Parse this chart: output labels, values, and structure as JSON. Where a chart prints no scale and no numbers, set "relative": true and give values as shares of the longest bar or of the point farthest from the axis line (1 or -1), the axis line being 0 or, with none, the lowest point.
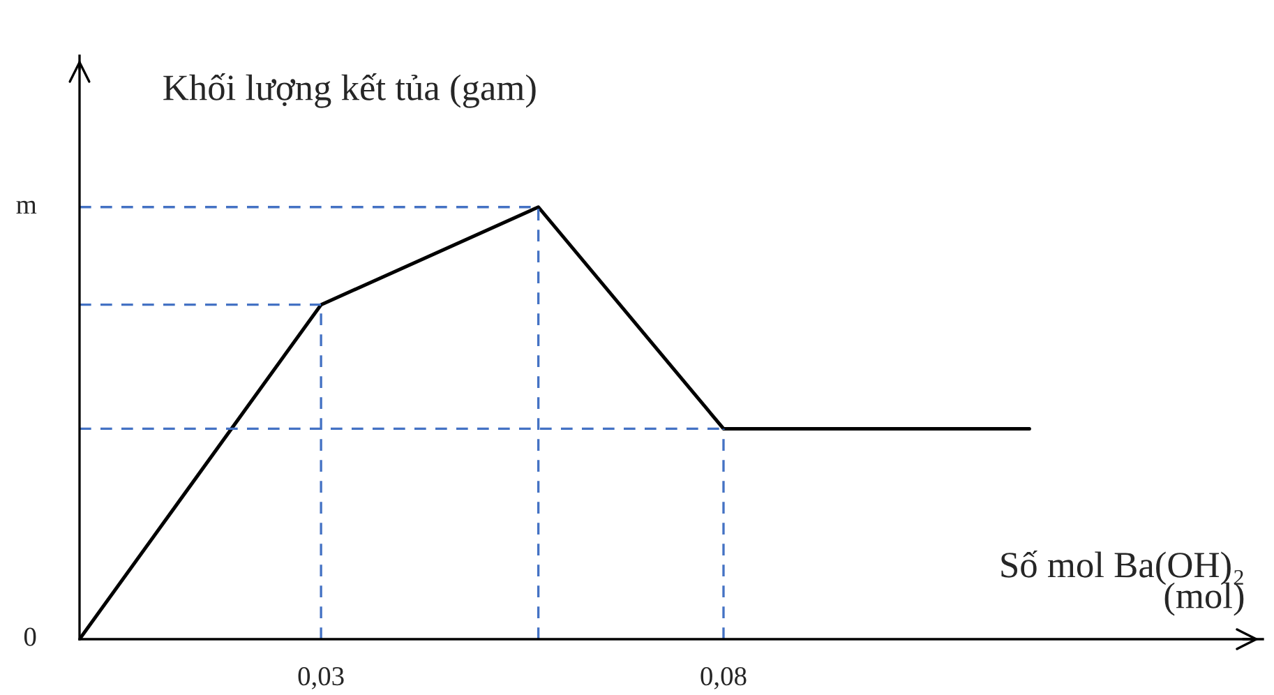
{
  "chart_data": {
    "type": "line",
    "relative": true,
    "xlabel": "Số mol Ba(OH)₂\n(mol)",
    "ylabel": "Khối lượng kết tủa (gam)",
    "xlim": [
      0,
      0.147
    ],
    "xticks": [
      {
        "value": 0.03,
        "label": "0,03"
      },
      {
        "value": 0.08,
        "label": "0,08"
      }
    ],
    "tick_labels": "x",
    "series": [
      {
        "color": "#000000",
        "x": [
          0,
          0.03,
          0.057,
          0.08,
          0.118
        ],
        "values": [
          0,
          0.774,
          1,
          0.487,
          0.487
        ]
      }
    ],
    "ref_lines": [
      {
        "axis": "y",
        "value": 1,
        "label": "m",
        "color": "#4472c4",
        "line_style": "dashed"
      },
      {
        "axis": "y",
        "value": 0.774,
        "color": "#4472c4",
        "line_style": "dashed"
      },
      {
        "axis": "y",
        "value": 0.487,
        "color": "#4472c4",
        "line_style": "dashed"
      },
      {
        "axis": "x",
        "value": 0.03,
        "color": "#4472c4",
        "line_style": "dashed"
      },
      {
        "axis": "x",
        "value": 0.057,
        "color": "#4472c4",
        "line_style": "dashed"
      },
      {
        "axis": "x",
        "value": 0.08,
        "color": "#4472c4",
        "line_style": "dashed"
      }
    ],
    "annotations": [
      {
        "text": "0",
        "x": 0,
        "y": 0
      }
    ]
  }
}
